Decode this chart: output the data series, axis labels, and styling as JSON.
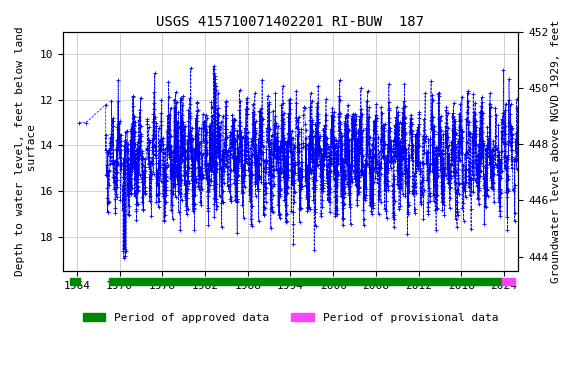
{
  "title": "USGS 415710071402201 RI-BUW  187",
  "ylabel_left": "Depth to water level, feet below land\n surface",
  "ylabel_right": "Groundwater level above NGVD 1929, feet",
  "xlim": [
    1962,
    2026
  ],
  "ylim_left_top": 9.0,
  "ylim_left_bottom": 19.5,
  "ylim_right_top": 452.0,
  "ylim_right_bottom": 443.5,
  "yticks_left": [
    10.0,
    12.0,
    14.0,
    16.0,
    18.0
  ],
  "yticks_right": [
    452.0,
    450.0,
    448.0,
    446.0,
    444.0
  ],
  "xticks": [
    1964,
    1970,
    1976,
    1982,
    1988,
    1994,
    2000,
    2006,
    2012,
    2018,
    2024
  ],
  "data_color": "#0000ff",
  "bg_color": "#ffffff",
  "grid_color": "#c0c0c0",
  "approved_bar_color": "#008800",
  "provisional_bar_color": "#ff44ff",
  "approved_start_1": 1963.0,
  "approved_end_1": 1964.5,
  "approved_start_2": 1968.5,
  "approved_end_2": 2023.7,
  "provisional_start": 2023.7,
  "provisional_end": 2025.5,
  "legend_approved": "Period of approved data",
  "legend_provisional": "Period of provisional data",
  "font_family": "monospace",
  "title_fontsize": 10,
  "label_fontsize": 8,
  "tick_fontsize": 8,
  "legend_fontsize": 8
}
